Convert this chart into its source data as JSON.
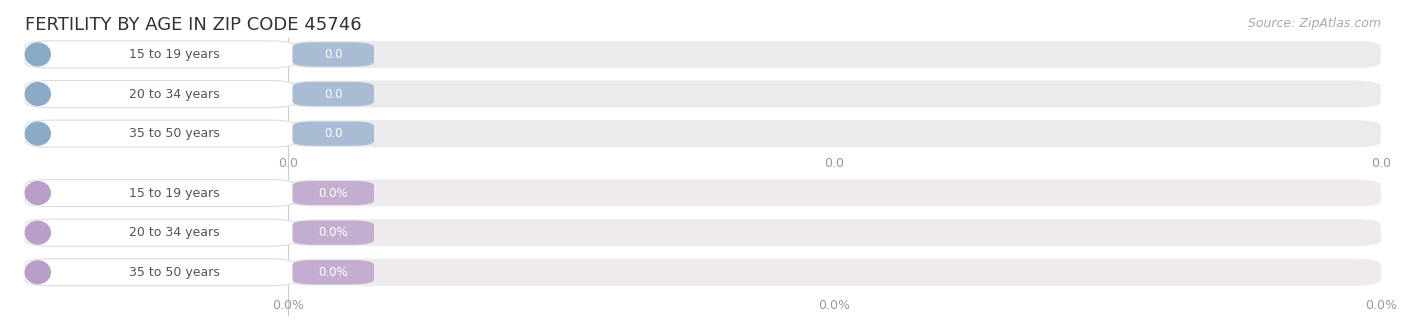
{
  "title": "FERTILITY BY AGE IN ZIP CODE 45746",
  "source": "Source: ZipAtlas.com",
  "background_color": "#ffffff",
  "title_color": "#333333",
  "title_fontsize": 13,
  "source_fontsize": 9,
  "source_color": "#aaaaaa",
  "top_group": {
    "categories": [
      "15 to 19 years",
      "20 to 34 years",
      "35 to 50 years"
    ],
    "value_labels": [
      "0.0",
      "0.0",
      "0.0"
    ],
    "bar_track_color": "#ebebee",
    "bar_color": "#aabbd4",
    "circle_color": "#8aaac8",
    "label_pill_color": "#aabbd4",
    "label_text_color": "#ffffff",
    "axis_tick_label": "0.0",
    "axis_tick_color": "#999999"
  },
  "bottom_group": {
    "categories": [
      "15 to 19 years",
      "20 to 34 years",
      "35 to 50 years"
    ],
    "value_labels": [
      "0.0%",
      "0.0%",
      "0.0%"
    ],
    "bar_track_color": "#eeeaee",
    "bar_color": "#c4aed0",
    "circle_color": "#b89ec8",
    "label_pill_color": "#c4aed0",
    "label_text_color": "#ffffff",
    "axis_tick_label": "0.0%",
    "axis_tick_color": "#999999"
  },
  "figsize": [
    14.06,
    3.3
  ],
  "dpi": 100
}
